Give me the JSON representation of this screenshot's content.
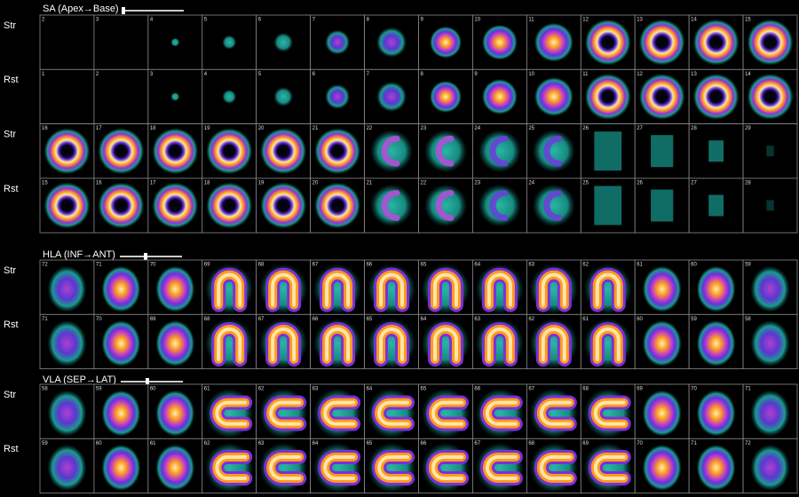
{
  "sections": [
    {
      "title": "SA (Apex→Base)",
      "rows": [
        {
          "label": "Str",
          "slices": [
            "2",
            "3",
            "4",
            "5",
            "6",
            "7",
            "8",
            "9",
            "10",
            "11",
            "12",
            "13",
            "14",
            "15"
          ]
        },
        {
          "label": "Rst",
          "slices": [
            "1",
            "2",
            "3",
            "4",
            "5",
            "6",
            "7",
            "8",
            "9",
            "10",
            "11",
            "12",
            "13",
            "14"
          ]
        },
        {
          "label": "Str",
          "slices": [
            "16",
            "17",
            "18",
            "19",
            "20",
            "21",
            "22",
            "23",
            "24",
            "25",
            "26",
            "27",
            "28",
            "29"
          ]
        },
        {
          "label": "Rst",
          "slices": [
            "15",
            "16",
            "17",
            "18",
            "19",
            "20",
            "21",
            "22",
            "23",
            "24",
            "25",
            "26",
            "27",
            "28"
          ]
        }
      ]
    },
    {
      "title": "HLA (INF→ANT)",
      "rows": [
        {
          "label": "Str",
          "slices": [
            "72",
            "71",
            "70",
            "69",
            "68",
            "67",
            "66",
            "65",
            "64",
            "63",
            "62",
            "61",
            "60",
            "59"
          ]
        },
        {
          "label": "Rst",
          "slices": [
            "71",
            "70",
            "69",
            "68",
            "67",
            "66",
            "65",
            "64",
            "63",
            "62",
            "61",
            "60",
            "59",
            "58"
          ]
        }
      ]
    },
    {
      "title": "VLA (SEP→LAT)",
      "rows": [
        {
          "label": "Str",
          "slices": [
            "58",
            "59",
            "60",
            "61",
            "62",
            "63",
            "64",
            "65",
            "66",
            "67",
            "68",
            "69",
            "70",
            "71"
          ]
        },
        {
          "label": "Rst",
          "slices": [
            "59",
            "60",
            "61",
            "62",
            "63",
            "64",
            "65",
            "66",
            "67",
            "68",
            "69",
            "70",
            "71",
            "72"
          ]
        }
      ]
    }
  ]
}
